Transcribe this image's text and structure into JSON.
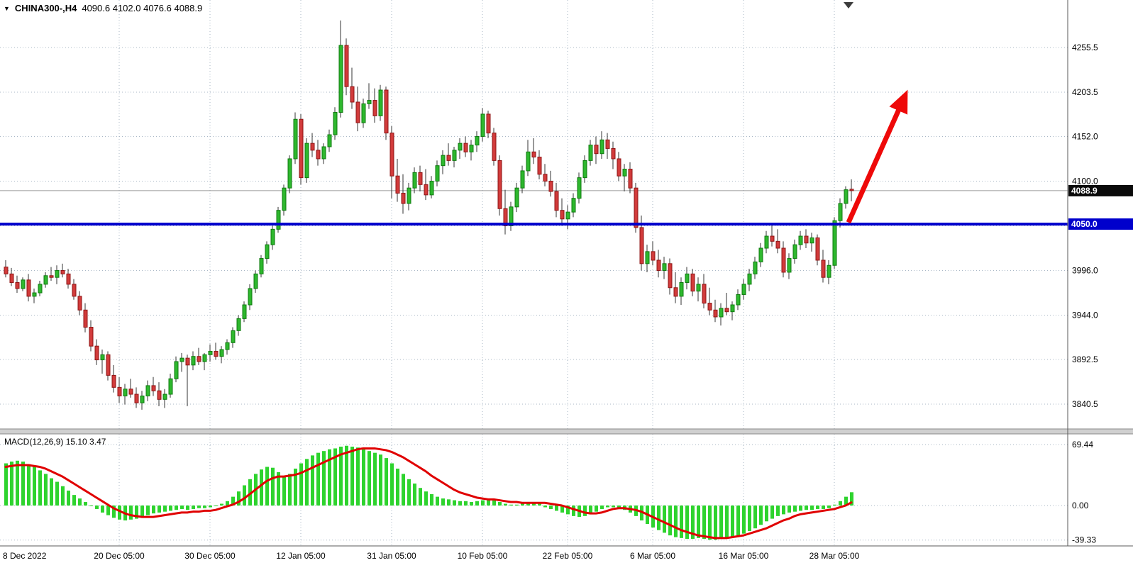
{
  "header": {
    "marker": "▼",
    "symbol": "CHINA300-,H4",
    "ohlc": "4090.6 4102.0 4076.6 4088.9"
  },
  "colors": {
    "background": "#ffffff",
    "grid": "#a9b7c6",
    "axis_line": "#5a5a5a",
    "axis_text": "#000000",
    "wick": "#333333",
    "up_fill": "#2eb82e",
    "up_stroke": "#0f7a0f",
    "down_fill": "#d23b3b",
    "down_stroke": "#8f1414",
    "support_line": "#0000cc",
    "arrow": "#ee0909",
    "price_line": "#9a9a9a",
    "current_tag_bg": "#0a0a0a",
    "hline_tag_bg": "#0000cc",
    "macd_bar": "#2ed32e",
    "macd_signal": "#e00000",
    "separator": "#d0d0d0"
  },
  "chart_data": [
    {
      "type": "candlestick",
      "symbol": "CHINA300-",
      "timeframe": "H4",
      "ohlc_current": {
        "open": 4090.6,
        "high": 4102.0,
        "low": 4076.6,
        "close": 4088.9
      },
      "ylim": [
        3811.6,
        4310.8
      ],
      "y_ticks": [
        {
          "value": 4255.5,
          "label": "4255.5"
        },
        {
          "value": 4203.5,
          "label": "4203.5"
        },
        {
          "value": 4152.0,
          "label": "4152.0"
        },
        {
          "value": 4100.0,
          "label": "4100.0"
        },
        {
          "value": 3996.0,
          "label": "3996.0"
        },
        {
          "value": 3944.0,
          "label": "3944.0"
        },
        {
          "value": 3892.5,
          "label": "3892.5"
        },
        {
          "value": 3840.5,
          "label": "3840.5"
        }
      ],
      "grid_extra": [
        4048.0
      ],
      "x_ticks": [
        {
          "index": 0,
          "label": "8 Dec 2022",
          "grid": false
        },
        {
          "index": 20,
          "label": "20 Dec 05:00",
          "grid": true
        },
        {
          "index": 36,
          "label": "30 Dec 05:00",
          "grid": true
        },
        {
          "index": 52,
          "label": "12 Jan 05:00",
          "grid": true
        },
        {
          "index": 68,
          "label": "31 Jan 05:00",
          "grid": true
        },
        {
          "index": 84,
          "label": "10 Feb 05:00",
          "grid": true
        },
        {
          "index": 99,
          "label": "22 Feb 05:00",
          "grid": true
        },
        {
          "index": 114,
          "label": "6 Mar 05:00",
          "grid": true
        },
        {
          "index": 130,
          "label": "16 Mar 05:00",
          "grid": true
        },
        {
          "index": 146,
          "label": "28 Mar 05:00",
          "grid": true
        }
      ],
      "hline": {
        "value": 4050.0,
        "label": "4050.0"
      },
      "price_line": {
        "value": 4088.9,
        "label": "4088.9"
      },
      "arrow": {
        "from_index": 148.5,
        "from_price": 4052,
        "to_index": 158.5,
        "to_price": 4200
      },
      "candles": [
        [
          4000,
          4008,
          3988,
          3992
        ],
        [
          3992,
          3999,
          3978,
          3982
        ],
        [
          3982,
          3990,
          3970,
          3975
        ],
        [
          3975,
          3988,
          3972,
          3985
        ],
        [
          3985,
          3992,
          3960,
          3966
        ],
        [
          3966,
          3975,
          3958,
          3970
        ],
        [
          3970,
          3984,
          3966,
          3980
        ],
        [
          3980,
          3994,
          3976,
          3990
        ],
        [
          3990,
          4000,
          3984,
          3988
        ],
        [
          3988,
          4002,
          3980,
          3996
        ],
        [
          3996,
          4004,
          3988,
          3992
        ],
        [
          3992,
          3998,
          3975,
          3980
        ],
        [
          3980,
          3986,
          3962,
          3966
        ],
        [
          3966,
          3972,
          3944,
          3950
        ],
        [
          3950,
          3958,
          3924,
          3930
        ],
        [
          3930,
          3938,
          3902,
          3908
        ],
        [
          3908,
          3916,
          3886,
          3892
        ],
        [
          3892,
          3904,
          3876,
          3898
        ],
        [
          3898,
          3902,
          3868,
          3874
        ],
        [
          3874,
          3886,
          3854,
          3860
        ],
        [
          3860,
          3872,
          3842,
          3850
        ],
        [
          3850,
          3864,
          3840,
          3858
        ],
        [
          3858,
          3870,
          3848,
          3852
        ],
        [
          3852,
          3860,
          3836,
          3842
        ],
        [
          3842,
          3856,
          3834,
          3850
        ],
        [
          3850,
          3868,
          3844,
          3862
        ],
        [
          3862,
          3872,
          3850,
          3856
        ],
        [
          3856,
          3866,
          3838,
          3846
        ],
        [
          3846,
          3858,
          3836,
          3852
        ],
        [
          3852,
          3876,
          3848,
          3870
        ],
        [
          3870,
          3896,
          3866,
          3890
        ],
        [
          3890,
          3900,
          3878,
          3894
        ],
        [
          3894,
          3898,
          3838,
          3886
        ],
        [
          3886,
          3902,
          3880,
          3896
        ],
        [
          3896,
          3906,
          3886,
          3890
        ],
        [
          3890,
          3900,
          3880,
          3898
        ],
        [
          3898,
          3910,
          3890,
          3902
        ],
        [
          3902,
          3912,
          3892,
          3896
        ],
        [
          3896,
          3908,
          3888,
          3904
        ],
        [
          3904,
          3916,
          3898,
          3912
        ],
        [
          3912,
          3930,
          3906,
          3926
        ],
        [
          3926,
          3944,
          3920,
          3940
        ],
        [
          3940,
          3960,
          3936,
          3956
        ],
        [
          3956,
          3980,
          3950,
          3975
        ],
        [
          3975,
          3996,
          3970,
          3992
        ],
        [
          3992,
          4014,
          3988,
          4010
        ],
        [
          4010,
          4030,
          4004,
          4026
        ],
        [
          4026,
          4048,
          4020,
          4044
        ],
        [
          4044,
          4070,
          4040,
          4066
        ],
        [
          4066,
          4096,
          4060,
          4092
        ],
        [
          4092,
          4130,
          4086,
          4126
        ],
        [
          4126,
          4180,
          4120,
          4172
        ],
        [
          4172,
          4178,
          4096,
          4104
        ],
        [
          4104,
          4150,
          4098,
          4144
        ],
        [
          4144,
          4156,
          4128,
          4136
        ],
        [
          4136,
          4148,
          4118,
          4126
        ],
        [
          4126,
          4144,
          4120,
          4140
        ],
        [
          4140,
          4160,
          4134,
          4154
        ],
        [
          4154,
          4186,
          4148,
          4180
        ],
        [
          4180,
          4287,
          4174,
          4258
        ],
        [
          4258,
          4266,
          4200,
          4210
        ],
        [
          4210,
          4232,
          4184,
          4192
        ],
        [
          4192,
          4210,
          4158,
          4168
        ],
        [
          4168,
          4196,
          4162,
          4190
        ],
        [
          4190,
          4214,
          4184,
          4194
        ],
        [
          4194,
          4208,
          4168,
          4176
        ],
        [
          4176,
          4212,
          4170,
          4206
        ],
        [
          4206,
          4210,
          4148,
          4156
        ],
        [
          4156,
          4164,
          4080,
          4106
        ],
        [
          4106,
          4126,
          4076,
          4086
        ],
        [
          4086,
          4108,
          4062,
          4074
        ],
        [
          4074,
          4098,
          4066,
          4092
        ],
        [
          4092,
          4116,
          4086,
          4110
        ],
        [
          4110,
          4118,
          4088,
          4096
        ],
        [
          4096,
          4114,
          4078,
          4084
        ],
        [
          4084,
          4106,
          4080,
          4100
        ],
        [
          4100,
          4124,
          4094,
          4118
        ],
        [
          4118,
          4136,
          4108,
          4130
        ],
        [
          4130,
          4144,
          4118,
          4124
        ],
        [
          4124,
          4140,
          4116,
          4136
        ],
        [
          4136,
          4150,
          4126,
          4144
        ],
        [
          4144,
          4152,
          4128,
          4134
        ],
        [
          4134,
          4148,
          4124,
          4142
        ],
        [
          4142,
          4158,
          4134,
          4152
        ],
        [
          4152,
          4185,
          4146,
          4178
        ],
        [
          4178,
          4182,
          4150,
          4156
        ],
        [
          4156,
          4162,
          4118,
          4124
        ],
        [
          4124,
          4130,
          4060,
          4068
        ],
        [
          4068,
          4090,
          4038,
          4048
        ],
        [
          4048,
          4076,
          4042,
          4070
        ],
        [
          4070,
          4098,
          4064,
          4092
        ],
        [
          4092,
          4118,
          4086,
          4112
        ],
        [
          4112,
          4148,
          4106,
          4134
        ],
        [
          4134,
          4150,
          4120,
          4128
        ],
        [
          4128,
          4136,
          4102,
          4108
        ],
        [
          4108,
          4120,
          4094,
          4100
        ],
        [
          4100,
          4112,
          4082,
          4088
        ],
        [
          4088,
          4098,
          4058,
          4066
        ],
        [
          4066,
          4080,
          4048,
          4056
        ],
        [
          4056,
          4072,
          4044,
          4064
        ],
        [
          4064,
          4086,
          4058,
          4080
        ],
        [
          4080,
          4110,
          4074,
          4104
        ],
        [
          4104,
          4130,
          4098,
          4124
        ],
        [
          4124,
          4148,
          4118,
          4142
        ],
        [
          4142,
          4152,
          4120,
          4132
        ],
        [
          4132,
          4158,
          4126,
          4148
        ],
        [
          4148,
          4156,
          4126,
          4138
        ],
        [
          4138,
          4146,
          4114,
          4126
        ],
        [
          4126,
          4134,
          4100,
          4106
        ],
        [
          4106,
          4120,
          4088,
          4114
        ],
        [
          4114,
          4122,
          4086,
          4092
        ],
        [
          4092,
          4098,
          4040,
          4046
        ],
        [
          4046,
          4060,
          3996,
          4004
        ],
        [
          4004,
          4026,
          3994,
          4018
        ],
        [
          4018,
          4030,
          4002,
          4008
        ],
        [
          4008,
          4020,
          3988,
          3996
        ],
        [
          3996,
          4012,
          3986,
          4004
        ],
        [
          4004,
          4010,
          3968,
          3976
        ],
        [
          3976,
          3994,
          3958,
          3966
        ],
        [
          3966,
          3988,
          3956,
          3982
        ],
        [
          3982,
          4000,
          3974,
          3992
        ],
        [
          3992,
          3998,
          3966,
          3972
        ],
        [
          3972,
          3988,
          3960,
          3980
        ],
        [
          3980,
          3992,
          3952,
          3958
        ],
        [
          3958,
          3976,
          3944,
          3950
        ],
        [
          3950,
          3962,
          3936,
          3942
        ],
        [
          3942,
          3958,
          3932,
          3952
        ],
        [
          3952,
          3970,
          3944,
          3948
        ],
        [
          3948,
          3960,
          3938,
          3956
        ],
        [
          3956,
          3974,
          3950,
          3968
        ],
        [
          3968,
          3986,
          3962,
          3980
        ],
        [
          3980,
          3998,
          3972,
          3992
        ],
        [
          3992,
          4012,
          3986,
          4006
        ],
        [
          4006,
          4028,
          4000,
          4022
        ],
        [
          4022,
          4042,
          4016,
          4036
        ],
        [
          4036,
          4050,
          4024,
          4030
        ],
        [
          4030,
          4044,
          4016,
          4022
        ],
        [
          4022,
          4030,
          3988,
          3994
        ],
        [
          3994,
          4016,
          3986,
          4010
        ],
        [
          4010,
          4032,
          4004,
          4026
        ],
        [
          4026,
          4042,
          4020,
          4036
        ],
        [
          4036,
          4044,
          4022,
          4028
        ],
        [
          4028,
          4040,
          4018,
          4034
        ],
        [
          4034,
          4038,
          4002,
          4008
        ],
        [
          4008,
          4020,
          3982,
          3988
        ],
        [
          3988,
          4008,
          3980,
          4002
        ],
        [
          4002,
          4058,
          3998,
          4054
        ],
        [
          4054,
          4080,
          4046,
          4074
        ],
        [
          4074,
          4094,
          4068,
          4090
        ],
        [
          4090.6,
          4102.0,
          4076.6,
          4088.9
        ]
      ]
    },
    {
      "type": "bar",
      "label": "MACD(12,26,9) 15.10 3.47",
      "indicator": "MACD",
      "params": [
        12,
        26,
        9
      ],
      "current_values": {
        "macd": 15.1,
        "signal": 3.47
      },
      "ylim": [
        -46,
        81.5
      ],
      "y_ticks": [
        {
          "value": 69.44,
          "label": "69.44"
        },
        {
          "value": 0,
          "label": "0.00"
        },
        {
          "value": -39.33,
          "label": "-39.33"
        }
      ],
      "histogram": [
        48,
        50,
        51,
        50,
        47,
        44,
        40,
        36,
        31,
        27,
        22,
        17,
        12,
        8,
        4,
        0,
        -4,
        -8,
        -11,
        -14,
        -16,
        -17,
        -16,
        -15,
        -13,
        -11,
        -9,
        -8,
        -7,
        -6,
        -5,
        -4,
        -5,
        -4,
        -3,
        -3,
        -2,
        0,
        2,
        5,
        10,
        16,
        23,
        30,
        36,
        41,
        44,
        43,
        38,
        33,
        36,
        42,
        48,
        53,
        57,
        60,
        62,
        64,
        65,
        67,
        68,
        67,
        66,
        64,
        62,
        60,
        58,
        54,
        48,
        42,
        36,
        30,
        25,
        20,
        16,
        13,
        10,
        8,
        7,
        6,
        5,
        5,
        4,
        5,
        6,
        7,
        6,
        4,
        2,
        1,
        1,
        2,
        3,
        3,
        2,
        -2,
        -4,
        -6,
        -8,
        -10,
        -12,
        -13,
        -12,
        -10,
        -7,
        -4,
        -2,
        -2,
        -3,
        -5,
        -8,
        -12,
        -17,
        -21,
        -25,
        -28,
        -31,
        -34,
        -36,
        -37,
        -38,
        -38,
        -37,
        -38,
        -39,
        -39,
        -38,
        -37,
        -36,
        -34,
        -32,
        -29,
        -26,
        -22,
        -18,
        -15,
        -12,
        -10,
        -8,
        -7,
        -6,
        -5,
        -5,
        -4,
        -4,
        -3,
        1,
        5,
        10,
        15.1
      ],
      "signal": [
        44,
        45,
        46,
        46,
        46,
        45,
        44,
        42,
        39,
        36,
        33,
        29,
        25,
        21,
        17,
        13,
        9,
        5,
        1,
        -3,
        -6,
        -9,
        -11,
        -12,
        -13,
        -13,
        -13,
        -12,
        -11,
        -10,
        -9,
        -8,
        -8,
        -7,
        -7,
        -6,
        -6,
        -5,
        -3,
        -1,
        1,
        4,
        8,
        13,
        18,
        23,
        28,
        31,
        33,
        33,
        34,
        35,
        37,
        40,
        43,
        46,
        49,
        52,
        55,
        58,
        60,
        62,
        64,
        65,
        65,
        65,
        64,
        63,
        61,
        58,
        55,
        51,
        47,
        43,
        39,
        34,
        30,
        26,
        22,
        18,
        15,
        13,
        11,
        9,
        8,
        7,
        7,
        6,
        5,
        4,
        4,
        3,
        3,
        3,
        3,
        3,
        2,
        1,
        0,
        -2,
        -4,
        -6,
        -8,
        -9,
        -9,
        -8,
        -6,
        -4,
        -3,
        -3,
        -4,
        -5,
        -7,
        -10,
        -13,
        -16,
        -19,
        -22,
        -25,
        -28,
        -30,
        -32,
        -34,
        -35,
        -36,
        -37,
        -37,
        -37,
        -36,
        -35,
        -34,
        -32,
        -30,
        -28,
        -26,
        -23,
        -20,
        -17,
        -15,
        -12,
        -10,
        -9,
        -8,
        -7,
        -6,
        -5,
        -4,
        -2,
        0,
        3.47
      ]
    }
  ]
}
